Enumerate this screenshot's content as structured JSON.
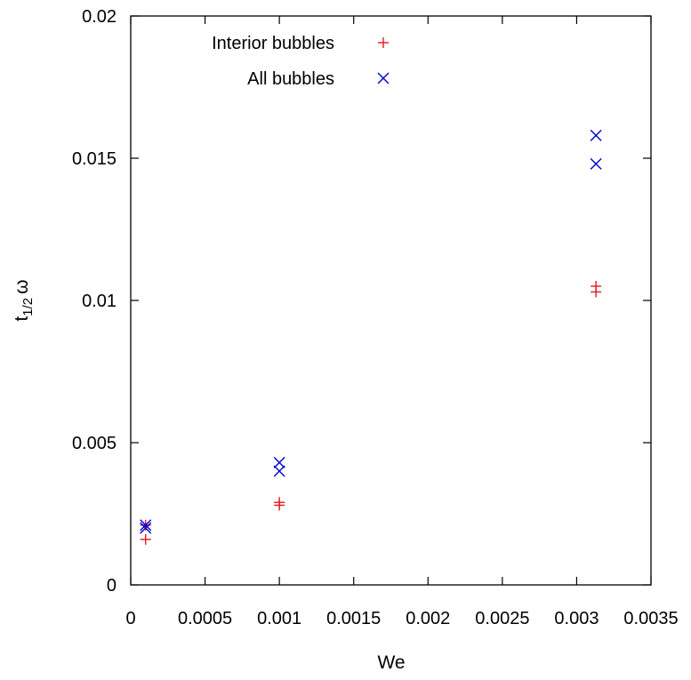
{
  "chart_data": {
    "type": "scatter",
    "title": "",
    "xlabel": "We",
    "ylabel": {
      "base": "t",
      "subscript": "1/2",
      "suffix": "ω"
    },
    "xlim": [
      0,
      0.0035
    ],
    "ylim": [
      0,
      0.02
    ],
    "xticks": [
      0,
      0.0005,
      0.001,
      0.0015,
      0.002,
      0.0025,
      0.003,
      0.0035
    ],
    "xtick_labels": [
      "0",
      "0.0005",
      "0.001",
      "0.0015",
      "0.002",
      "0.0025",
      "0.003",
      "0.0035"
    ],
    "yticks": [
      0,
      0.005,
      0.01,
      0.015,
      0.02
    ],
    "ytick_labels": [
      "0",
      "0.005",
      "0.01",
      "0.015",
      "0.02"
    ],
    "grid": false,
    "legend_position": "top-left",
    "series": [
      {
        "name": "Interior bubbles",
        "marker": "plus",
        "color": "#e41a1c",
        "x": [
          0.0001,
          0.0001,
          0.001,
          0.001,
          0.00313,
          0.00313
        ],
        "y": [
          0.0016,
          0.0021,
          0.0028,
          0.0029,
          0.0103,
          0.0105
        ]
      },
      {
        "name": "All bubbles",
        "marker": "cross",
        "color": "#0000cc",
        "x": [
          0.0001,
          0.0001,
          0.001,
          0.001,
          0.00313,
          0.00313
        ],
        "y": [
          0.002,
          0.0021,
          0.004,
          0.0043,
          0.0148,
          0.0158
        ]
      }
    ]
  }
}
